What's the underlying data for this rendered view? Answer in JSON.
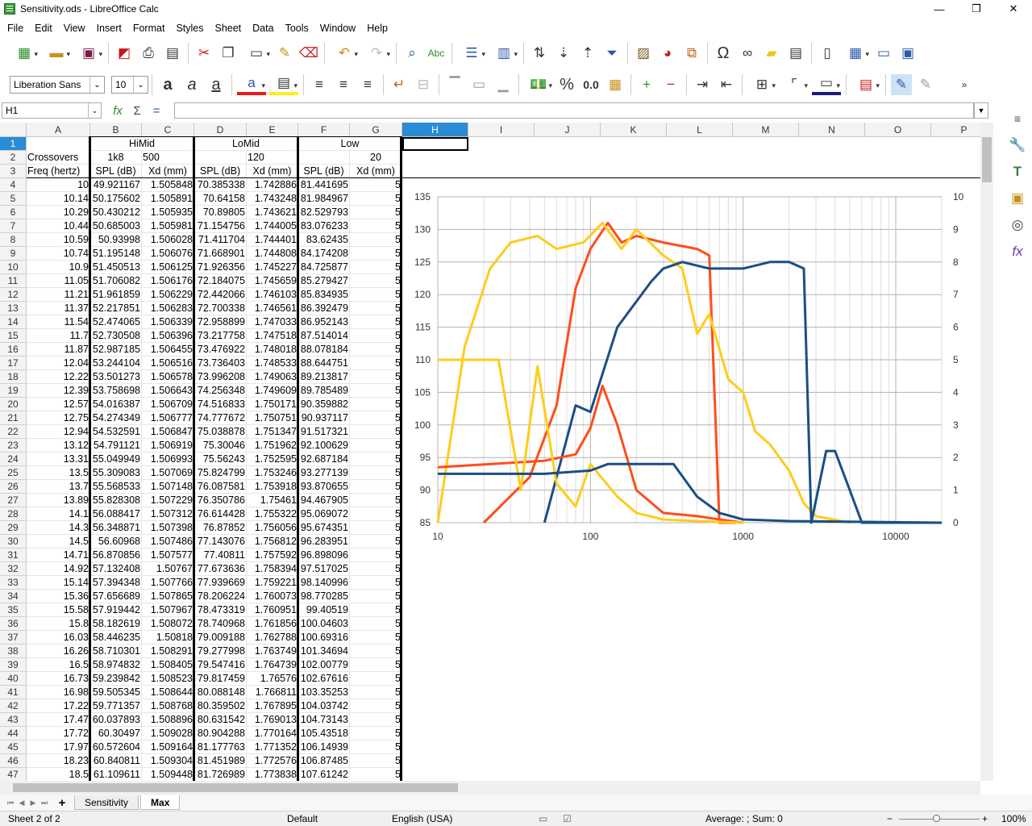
{
  "window": {
    "title": "Sensitivity.ods - LibreOffice Calc",
    "min": "—",
    "max": "❐",
    "close": "✕"
  },
  "menu": [
    "File",
    "Edit",
    "View",
    "Insert",
    "Format",
    "Styles",
    "Sheet",
    "Data",
    "Tools",
    "Window",
    "Help"
  ],
  "font": {
    "name": "Liberation Sans",
    "size": "10"
  },
  "namebox": "H1",
  "columns": [
    "A",
    "B",
    "C",
    "D",
    "E",
    "F",
    "G",
    "H",
    "I",
    "J",
    "K",
    "L",
    "M",
    "N",
    "O",
    "P"
  ],
  "header_rows": {
    "r1": {
      "B": "HiMid",
      "D": "LoMid",
      "F": "Low"
    },
    "r2": {
      "A": "Crossovers",
      "B": "1k8",
      "C": "500",
      "E": "120",
      "G": "20"
    },
    "r3": {
      "A": "Freq (hertz)",
      "B": "SPL (dB)",
      "C": "Xd (mm)",
      "D": "SPL (dB)",
      "E": "Xd (mm)",
      "F": "SPL (dB)",
      "G": "Xd (mm)"
    }
  },
  "rows": [
    [
      "4",
      "10",
      "49.921167",
      "1.505848",
      "70.385338",
      "1.742886",
      "81.441695",
      "5"
    ],
    [
      "5",
      "10.14",
      "50.175602",
      "1.505891",
      "70.64158",
      "1.743248",
      "81.984967",
      "5"
    ],
    [
      "6",
      "10.29",
      "50.430212",
      "1.505935",
      "70.89805",
      "1.743621",
      "82.529793",
      "5"
    ],
    [
      "7",
      "10.44",
      "50.685003",
      "1.505981",
      "71.154756",
      "1.744005",
      "83.076233",
      "5"
    ],
    [
      "8",
      "10.59",
      "50.93998",
      "1.506028",
      "71.411704",
      "1.744401",
      "83.62435",
      "5"
    ],
    [
      "9",
      "10.74",
      "51.195148",
      "1.506076",
      "71.668901",
      "1.744808",
      "84.174208",
      "5"
    ],
    [
      "10",
      "10.9",
      "51.450513",
      "1.506125",
      "71.926356",
      "1.745227",
      "84.725877",
      "5"
    ],
    [
      "11",
      "11.05",
      "51.706082",
      "1.506176",
      "72.184075",
      "1.745659",
      "85.279427",
      "5"
    ],
    [
      "12",
      "11.21",
      "51.961859",
      "1.506229",
      "72.442066",
      "1.746103",
      "85.834935",
      "5"
    ],
    [
      "13",
      "11.37",
      "52.217851",
      "1.506283",
      "72.700338",
      "1.746561",
      "86.392479",
      "5"
    ],
    [
      "14",
      "11.54",
      "52.474065",
      "1.506339",
      "72.958899",
      "1.747033",
      "86.952143",
      "5"
    ],
    [
      "15",
      "11.7",
      "52.730508",
      "1.506396",
      "73.217758",
      "1.747518",
      "87.514014",
      "5"
    ],
    [
      "16",
      "11.87",
      "52.987185",
      "1.506455",
      "73.476922",
      "1.748018",
      "88.078184",
      "5"
    ],
    [
      "17",
      "12.04",
      "53.244104",
      "1.506516",
      "73.736403",
      "1.748533",
      "88.644751",
      "5"
    ],
    [
      "18",
      "12.22",
      "53.501273",
      "1.506578",
      "73.996208",
      "1.749063",
      "89.213817",
      "5"
    ],
    [
      "19",
      "12.39",
      "53.758698",
      "1.506643",
      "74.256348",
      "1.749609",
      "89.785489",
      "5"
    ],
    [
      "20",
      "12.57",
      "54.016387",
      "1.506709",
      "74.516833",
      "1.750171",
      "90.359882",
      "5"
    ],
    [
      "21",
      "12.75",
      "54.274349",
      "1.506777",
      "74.777672",
      "1.750751",
      "90.937117",
      "5"
    ],
    [
      "22",
      "12.94",
      "54.532591",
      "1.506847",
      "75.038878",
      "1.751347",
      "91.517321",
      "5"
    ],
    [
      "23",
      "13.12",
      "54.791121",
      "1.506919",
      "75.30046",
      "1.751962",
      "92.100629",
      "5"
    ],
    [
      "24",
      "13.31",
      "55.049949",
      "1.506993",
      "75.56243",
      "1.752595",
      "92.687184",
      "5"
    ],
    [
      "25",
      "13.5",
      "55.309083",
      "1.507069",
      "75.824799",
      "1.753246",
      "93.277139",
      "5"
    ],
    [
      "26",
      "13.7",
      "55.568533",
      "1.507148",
      "76.087581",
      "1.753918",
      "93.870655",
      "5"
    ],
    [
      "27",
      "13.89",
      "55.828308",
      "1.507229",
      "76.350786",
      "1.75461",
      "94.467905",
      "5"
    ],
    [
      "28",
      "14.1",
      "56.088417",
      "1.507312",
      "76.614428",
      "1.755322",
      "95.069072",
      "5"
    ],
    [
      "29",
      "14.3",
      "56.348871",
      "1.507398",
      "76.87852",
      "1.756056",
      "95.674351",
      "5"
    ],
    [
      "30",
      "14.5",
      "56.60968",
      "1.507486",
      "77.143076",
      "1.756812",
      "96.283951",
      "5"
    ],
    [
      "31",
      "14.71",
      "56.870856",
      "1.507577",
      "77.40811",
      "1.757592",
      "96.898096",
      "5"
    ],
    [
      "32",
      "14.92",
      "57.132408",
      "1.50767",
      "77.673636",
      "1.758394",
      "97.517025",
      "5"
    ],
    [
      "33",
      "15.14",
      "57.394348",
      "1.507766",
      "77.939669",
      "1.759221",
      "98.140996",
      "5"
    ],
    [
      "34",
      "15.36",
      "57.656689",
      "1.507865",
      "78.206224",
      "1.760073",
      "98.770285",
      "5"
    ],
    [
      "35",
      "15.58",
      "57.919442",
      "1.507967",
      "78.473319",
      "1.760951",
      "99.40519",
      "5"
    ],
    [
      "36",
      "15.8",
      "58.182619",
      "1.508072",
      "78.740968",
      "1.761856",
      "100.04603",
      "5"
    ],
    [
      "37",
      "16.03",
      "58.446235",
      "1.50818",
      "79.009188",
      "1.762788",
      "100.69316",
      "5"
    ],
    [
      "38",
      "16.26",
      "58.710301",
      "1.508291",
      "79.277998",
      "1.763749",
      "101.34694",
      "5"
    ],
    [
      "39",
      "16.5",
      "58.974832",
      "1.508405",
      "79.547416",
      "1.764739",
      "102.00779",
      "5"
    ],
    [
      "40",
      "16.73",
      "59.239842",
      "1.508523",
      "79.817459",
      "1.76576",
      "102.67616",
      "5"
    ],
    [
      "41",
      "16.98",
      "59.505345",
      "1.508644",
      "80.088148",
      "1.766811",
      "103.35253",
      "5"
    ],
    [
      "42",
      "17.22",
      "59.771357",
      "1.508768",
      "80.359502",
      "1.767895",
      "104.03742",
      "5"
    ],
    [
      "43",
      "17.47",
      "60.037893",
      "1.508896",
      "80.631542",
      "1.769013",
      "104.73143",
      "5"
    ],
    [
      "44",
      "17.72",
      "60.30497",
      "1.509028",
      "80.904288",
      "1.770164",
      "105.43518",
      "5"
    ],
    [
      "45",
      "17.97",
      "60.572604",
      "1.509164",
      "81.177763",
      "1.771352",
      "106.14939",
      "5"
    ],
    [
      "46",
      "18.23",
      "60.840811",
      "1.509304",
      "81.451989",
      "1.772576",
      "106.87485",
      "5"
    ],
    [
      "47",
      "18.5",
      "61.109611",
      "1.509448",
      "81.726989",
      "1.773838",
      "107.61242",
      "5"
    ]
  ],
  "chart_data": {
    "type": "line",
    "x_scale": "log",
    "xlim": [
      10,
      20000
    ],
    "ylim": [
      85,
      135
    ],
    "y2lim": [
      0,
      10
    ],
    "x_ticks": [
      "10",
      "100",
      "1000",
      "10000"
    ],
    "y_ticks": [
      "85",
      "90",
      "95",
      "100",
      "105",
      "110",
      "115",
      "120",
      "125",
      "130",
      "135"
    ],
    "y2_ticks": [
      "0",
      "1",
      "2",
      "3",
      "4",
      "5",
      "6",
      "7",
      "8",
      "9",
      "10"
    ],
    "series": [
      {
        "color": "#ff4d1a",
        "points": [
          [
            20,
            84
          ],
          [
            40,
            92
          ],
          [
            60,
            103
          ],
          [
            80,
            121
          ],
          [
            100,
            127
          ],
          [
            130,
            131
          ],
          [
            160,
            128
          ],
          [
            200,
            129
          ],
          [
            300,
            128
          ],
          [
            500,
            127
          ],
          [
            600,
            126
          ],
          [
            700,
            85
          ],
          [
            800,
            85
          ],
          [
            900,
            85
          ]
        ]
      },
      {
        "color": "#ffcc1a",
        "points": [
          [
            10,
            85
          ],
          [
            15,
            112
          ],
          [
            22,
            124
          ],
          [
            30,
            128
          ],
          [
            45,
            129
          ],
          [
            60,
            127
          ],
          [
            90,
            128
          ],
          [
            120,
            131
          ],
          [
            160,
            127
          ],
          [
            200,
            130
          ],
          [
            300,
            126
          ],
          [
            400,
            124
          ],
          [
            500,
            114
          ],
          [
            600,
            117
          ],
          [
            800,
            107
          ],
          [
            1000,
            105
          ],
          [
            1200,
            99
          ],
          [
            1500,
            97
          ],
          [
            2000,
            93
          ],
          [
            2500,
            88
          ],
          [
            3000,
            86
          ],
          [
            5000,
            85
          ]
        ]
      },
      {
        "color": "#1a4e85",
        "points": [
          [
            50,
            84
          ],
          [
            80,
            103
          ],
          [
            100,
            102
          ],
          [
            150,
            115
          ],
          [
            250,
            122
          ],
          [
            300,
            124
          ],
          [
            400,
            125
          ],
          [
            600,
            124
          ],
          [
            1000,
            124
          ],
          [
            1500,
            125
          ],
          [
            2000,
            125
          ],
          [
            2500,
            124
          ],
          [
            2800,
            85
          ],
          [
            3500,
            96
          ],
          [
            4000,
            96
          ],
          [
            5000,
            90
          ],
          [
            6000,
            85
          ],
          [
            20000,
            85
          ]
        ]
      },
      {
        "color": "#ff4d1a",
        "axis": "y2",
        "points": [
          [
            10,
            1.7
          ],
          [
            50,
            1.9
          ],
          [
            80,
            2.1
          ],
          [
            100,
            2.9
          ],
          [
            120,
            4.2
          ],
          [
            150,
            3
          ],
          [
            200,
            1
          ],
          [
            300,
            0.3
          ],
          [
            500,
            0.2
          ],
          [
            700,
            0.1
          ],
          [
            1000,
            0
          ]
        ]
      },
      {
        "color": "#ffcc1a",
        "axis": "y2",
        "points": [
          [
            10,
            5
          ],
          [
            25,
            5
          ],
          [
            35,
            1
          ],
          [
            45,
            4.8
          ],
          [
            60,
            1.2
          ],
          [
            80,
            0.5
          ],
          [
            100,
            1.8
          ],
          [
            150,
            0.8
          ],
          [
            200,
            0.3
          ],
          [
            300,
            0.1
          ],
          [
            500,
            0.05
          ],
          [
            1000,
            0
          ]
        ]
      },
      {
        "color": "#1a4e85",
        "axis": "y2",
        "points": [
          [
            10,
            1.5
          ],
          [
            50,
            1.5
          ],
          [
            100,
            1.6
          ],
          [
            130,
            1.8
          ],
          [
            350,
            1.8
          ],
          [
            500,
            0.8
          ],
          [
            700,
            0.3
          ],
          [
            1000,
            0.1
          ],
          [
            2000,
            0.05
          ],
          [
            20000,
            0
          ]
        ]
      }
    ]
  },
  "sheet_tabs": [
    "Sensitivity",
    "Max"
  ],
  "status": {
    "sheet": "Sheet 2 of 2",
    "style": "Default",
    "language": "English (USA)",
    "summary": "Average: ; Sum: 0",
    "zoom": "100%"
  }
}
